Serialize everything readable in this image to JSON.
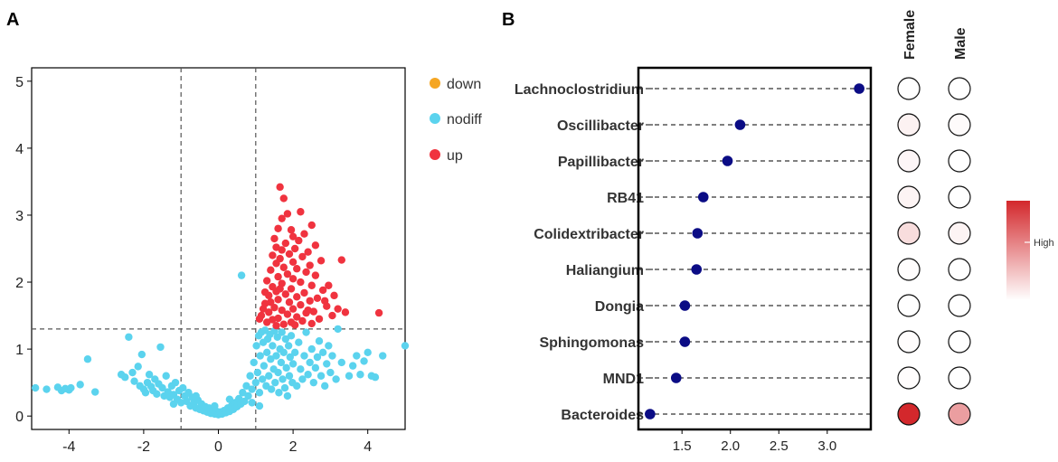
{
  "panels": {
    "a_label": "A",
    "b_label": "B"
  },
  "colors": {
    "down": "#f5a623",
    "nodiff": "#5bd3ee",
    "up": "#f0333f",
    "lollipop_dot": "#0b0c85",
    "heat_high": "#d3282c",
    "heat_low": "#ffffff"
  },
  "chart_data": [
    {
      "id": "volcano",
      "type": "scatter",
      "title": "",
      "xlabel": "",
      "ylabel": "",
      "xlim": [
        -5,
        5
      ],
      "ylim": [
        -0.2,
        5.2
      ],
      "xticks": [
        "-4",
        "-2",
        "0",
        "2",
        "4"
      ],
      "yticks": [
        "0",
        "1",
        "2",
        "3",
        "4",
        "5"
      ],
      "thresholds": {
        "x": [
          -1,
          1
        ],
        "y": 1.3
      },
      "legend": {
        "position": "right",
        "entries": [
          {
            "key": "down",
            "label": "down"
          },
          {
            "key": "nodiff",
            "label": "nodiff"
          },
          {
            "key": "up",
            "label": "up"
          }
        ]
      },
      "series": [
        {
          "name": "down",
          "points": []
        },
        {
          "name": "nodiff",
          "points": [
            [
              -4.9,
              0.42
            ],
            [
              -4.6,
              0.4
            ],
            [
              -4.3,
              0.43
            ],
            [
              -4.2,
              0.38
            ],
            [
              -4.1,
              0.41
            ],
            [
              -4.0,
              0.39
            ],
            [
              -3.95,
              0.42
            ],
            [
              -3.7,
              0.47
            ],
            [
              -3.5,
              0.85
            ],
            [
              -3.3,
              0.36
            ],
            [
              -2.6,
              0.62
            ],
            [
              -2.5,
              0.58
            ],
            [
              -2.4,
              1.18
            ],
            [
              -2.25,
              0.52
            ],
            [
              -2.15,
              0.74
            ],
            [
              -2.1,
              0.45
            ],
            [
              -2.05,
              0.92
            ],
            [
              -2.0,
              0.4
            ],
            [
              -1.95,
              0.35
            ],
            [
              -1.9,
              0.5
            ],
            [
              -1.85,
              0.62
            ],
            [
              -1.8,
              0.44
            ],
            [
              -1.75,
              0.38
            ],
            [
              -1.7,
              0.55
            ],
            [
              -1.65,
              0.33
            ],
            [
              -1.6,
              0.48
            ],
            [
              -1.55,
              1.03
            ],
            [
              -1.5,
              0.42
            ],
            [
              -1.45,
              0.3
            ],
            [
              -1.4,
              0.6
            ],
            [
              -1.35,
              0.36
            ],
            [
              -1.3,
              0.28
            ],
            [
              -1.25,
              0.45
            ],
            [
              -1.2,
              0.32
            ],
            [
              -1.15,
              0.5
            ],
            [
              -1.1,
              0.25
            ],
            [
              -1.05,
              0.38
            ],
            [
              -1.0,
              0.2
            ],
            [
              -0.95,
              0.42
            ],
            [
              -0.9,
              0.3
            ],
            [
              -0.85,
              0.22
            ],
            [
              -0.8,
              0.35
            ],
            [
              -0.75,
              0.15
            ],
            [
              -0.7,
              0.28
            ],
            [
              -0.65,
              0.2
            ],
            [
              -0.6,
              0.12
            ],
            [
              -0.55,
              0.24
            ],
            [
              -0.5,
              0.1
            ],
            [
              -0.45,
              0.18
            ],
            [
              -0.4,
              0.08
            ],
            [
              -0.35,
              0.14
            ],
            [
              -0.3,
              0.06
            ],
            [
              -0.25,
              0.12
            ],
            [
              -0.2,
              0.04
            ],
            [
              -0.15,
              0.09
            ],
            [
              -0.1,
              0.03
            ],
            [
              -0.05,
              0.07
            ],
            [
              0.0,
              0.02
            ],
            [
              0.05,
              0.06
            ],
            [
              0.1,
              0.03
            ],
            [
              0.15,
              0.08
            ],
            [
              0.2,
              0.05
            ],
            [
              0.25,
              0.12
            ],
            [
              0.3,
              0.07
            ],
            [
              0.35,
              0.15
            ],
            [
              0.4,
              0.1
            ],
            [
              0.45,
              0.2
            ],
            [
              0.5,
              0.14
            ],
            [
              0.55,
              0.26
            ],
            [
              0.6,
              0.18
            ],
            [
              0.62,
              2.1
            ],
            [
              0.65,
              0.35
            ],
            [
              0.7,
              0.22
            ],
            [
              0.75,
              0.45
            ],
            [
              0.8,
              0.3
            ],
            [
              0.85,
              0.6
            ],
            [
              0.9,
              0.4
            ],
            [
              0.95,
              0.8
            ],
            [
              1.0,
              0.5
            ],
            [
              1.02,
              1.05
            ],
            [
              1.05,
              0.65
            ],
            [
              1.08,
              1.2
            ],
            [
              1.1,
              0.35
            ],
            [
              1.12,
              0.9
            ],
            [
              1.15,
              1.25
            ],
            [
              1.18,
              0.55
            ],
            [
              1.2,
              1.1
            ],
            [
              1.22,
              0.75
            ],
            [
              1.25,
              1.28
            ],
            [
              1.28,
              0.45
            ],
            [
              1.3,
              0.95
            ],
            [
              1.32,
              1.15
            ],
            [
              1.35,
              0.6
            ],
            [
              1.38,
              1.22
            ],
            [
              1.4,
              0.85
            ],
            [
              1.42,
              0.4
            ],
            [
              1.45,
              1.05
            ],
            [
              1.48,
              0.7
            ],
            [
              1.5,
              1.27
            ],
            [
              1.52,
              0.5
            ],
            [
              1.55,
              0.9
            ],
            [
              1.58,
              1.18
            ],
            [
              1.6,
              0.65
            ],
            [
              1.62,
              0.35
            ],
            [
              1.65,
              1.0
            ],
            [
              1.68,
              0.8
            ],
            [
              1.7,
              1.25
            ],
            [
              1.72,
              0.55
            ],
            [
              1.75,
              0.95
            ],
            [
              1.78,
              0.42
            ],
            [
              1.8,
              1.15
            ],
            [
              1.82,
              0.72
            ],
            [
              1.85,
              0.3
            ],
            [
              1.88,
              1.05
            ],
            [
              1.9,
              0.6
            ],
            [
              1.92,
              0.88
            ],
            [
              1.95,
              1.2
            ],
            [
              1.98,
              0.5
            ],
            [
              2.0,
              0.78
            ],
            [
              2.05,
              0.95
            ],
            [
              2.1,
              0.45
            ],
            [
              2.15,
              1.1
            ],
            [
              2.2,
              0.7
            ],
            [
              2.25,
              0.55
            ],
            [
              2.3,
              0.9
            ],
            [
              2.35,
              1.25
            ],
            [
              2.4,
              0.62
            ],
            [
              2.45,
              0.8
            ],
            [
              2.5,
              1.0
            ],
            [
              2.55,
              0.5
            ],
            [
              2.6,
              0.72
            ],
            [
              2.65,
              0.88
            ],
            [
              2.7,
              1.12
            ],
            [
              2.75,
              0.6
            ],
            [
              2.8,
              0.95
            ],
            [
              2.85,
              0.45
            ],
            [
              2.9,
              0.78
            ],
            [
              2.95,
              1.05
            ],
            [
              3.0,
              0.65
            ],
            [
              3.05,
              0.9
            ],
            [
              3.15,
              0.55
            ],
            [
              3.2,
              1.3
            ],
            [
              3.3,
              0.8
            ],
            [
              3.5,
              0.6
            ],
            [
              3.6,
              0.75
            ],
            [
              3.7,
              0.9
            ],
            [
              3.8,
              0.62
            ],
            [
              3.9,
              0.82
            ],
            [
              4.0,
              0.95
            ],
            [
              4.1,
              0.6
            ],
            [
              4.2,
              0.58
            ],
            [
              4.4,
              0.9
            ],
            [
              5.0,
              1.05
            ],
            [
              0.9,
              0.2
            ],
            [
              1.1,
              0.15
            ],
            [
              0.3,
              0.25
            ],
            [
              -0.1,
              0.15
            ],
            [
              -0.6,
              0.3
            ],
            [
              -1.2,
              0.18
            ],
            [
              -2.3,
              0.65
            ]
          ]
        },
        {
          "name": "up",
          "points": [
            [
              1.65,
              3.42
            ],
            [
              1.75,
              3.25
            ],
            [
              2.2,
              3.05
            ],
            [
              1.85,
              3.02
            ],
            [
              1.7,
              2.95
            ],
            [
              2.5,
              2.85
            ],
            [
              1.6,
              2.8
            ],
            [
              1.95,
              2.78
            ],
            [
              2.3,
              2.72
            ],
            [
              2.0,
              2.68
            ],
            [
              1.5,
              2.65
            ],
            [
              2.15,
              2.62
            ],
            [
              1.8,
              2.58
            ],
            [
              2.6,
              2.55
            ],
            [
              1.55,
              2.52
            ],
            [
              2.05,
              2.5
            ],
            [
              1.7,
              2.48
            ],
            [
              2.4,
              2.45
            ],
            [
              1.9,
              2.42
            ],
            [
              1.45,
              2.4
            ],
            [
              2.25,
              2.38
            ],
            [
              1.65,
              2.35
            ],
            [
              2.75,
              2.32
            ],
            [
              2.0,
              2.3
            ],
            [
              3.3,
              2.33
            ],
            [
              1.55,
              2.28
            ],
            [
              2.45,
              2.25
            ],
            [
              1.75,
              2.22
            ],
            [
              2.1,
              2.2
            ],
            [
              1.4,
              2.18
            ],
            [
              2.35,
              2.15
            ],
            [
              1.85,
              2.12
            ],
            [
              2.6,
              2.1
            ],
            [
              1.6,
              2.08
            ],
            [
              2.0,
              2.05
            ],
            [
              1.3,
              2.02
            ],
            [
              2.2,
              2.0
            ],
            [
              1.7,
              1.98
            ],
            [
              2.5,
              1.95
            ],
            [
              1.45,
              1.93
            ],
            [
              1.95,
              1.9
            ],
            [
              2.8,
              1.88
            ],
            [
              1.55,
              1.86
            ],
            [
              2.3,
              1.84
            ],
            [
              1.8,
              1.82
            ],
            [
              1.35,
              1.8
            ],
            [
              2.1,
              1.78
            ],
            [
              2.65,
              1.76
            ],
            [
              1.6,
              1.74
            ],
            [
              2.45,
              1.72
            ],
            [
              1.9,
              1.7
            ],
            [
              1.25,
              1.68
            ],
            [
              2.2,
              1.66
            ],
            [
              2.9,
              1.64
            ],
            [
              1.5,
              1.62
            ],
            [
              2.0,
              1.6
            ],
            [
              1.7,
              1.58
            ],
            [
              2.55,
              1.56
            ],
            [
              1.35,
              1.55
            ],
            [
              2.35,
              1.54
            ],
            [
              1.85,
              1.52
            ],
            [
              3.05,
              1.5
            ],
            [
              1.2,
              1.6
            ],
            [
              2.1,
              1.48
            ],
            [
              1.6,
              1.46
            ],
            [
              2.7,
              1.45
            ],
            [
              1.45,
              1.44
            ],
            [
              2.25,
              1.42
            ],
            [
              1.95,
              1.4
            ],
            [
              1.3,
              1.4
            ],
            [
              2.5,
              1.38
            ],
            [
              1.75,
              1.37
            ],
            [
              3.2,
              1.6
            ],
            [
              1.15,
              1.5
            ],
            [
              2.05,
              1.36
            ],
            [
              1.55,
              1.35
            ],
            [
              2.85,
              1.72
            ],
            [
              1.4,
              1.7
            ],
            [
              3.4,
              1.55
            ],
            [
              4.3,
              1.54
            ],
            [
              2.95,
              1.95
            ],
            [
              1.1,
              1.45
            ],
            [
              1.25,
              1.85
            ],
            [
              3.1,
              1.8
            ],
            [
              2.4,
              1.58
            ],
            [
              1.65,
              1.9
            ]
          ]
        }
      ]
    },
    {
      "id": "lollipop",
      "type": "scatter",
      "title": "",
      "xlabel": "",
      "ylabel": "",
      "xlim": [
        1.05,
        3.45
      ],
      "xticks": [
        "1.5",
        "2.0",
        "2.5",
        "3.0"
      ],
      "categories": [
        "Lachnoclostridium",
        "Oscillibacter",
        "Papillibacter",
        "RB41",
        "Colidextribacter",
        "Haliangium",
        "Dongia",
        "Sphingomonas",
        "MND1",
        "Bacteroides"
      ],
      "values": [
        3.33,
        2.1,
        1.97,
        1.72,
        1.66,
        1.65,
        1.53,
        1.53,
        1.44,
        1.17
      ]
    },
    {
      "id": "heatmap",
      "type": "heatmap",
      "title": "",
      "columns": [
        "Female",
        "Male"
      ],
      "rows": [
        "Lachnoclostridium",
        "Oscillibacter",
        "Papillibacter",
        "RB41",
        "Colidextribacter",
        "Haliangium",
        "Dongia",
        "Sphingomonas",
        "MND1",
        "Bacteroides"
      ],
      "values": [
        [
          0.0,
          0.0
        ],
        [
          0.06,
          0.02
        ],
        [
          0.04,
          0.0
        ],
        [
          0.05,
          0.0
        ],
        [
          0.16,
          0.05
        ],
        [
          0.01,
          0.0
        ],
        [
          0.0,
          0.0
        ],
        [
          0.01,
          0.0
        ],
        [
          0.01,
          0.0
        ],
        [
          1.0,
          0.45
        ]
      ],
      "colorbar": {
        "label": "High",
        "position": "right"
      }
    }
  ]
}
